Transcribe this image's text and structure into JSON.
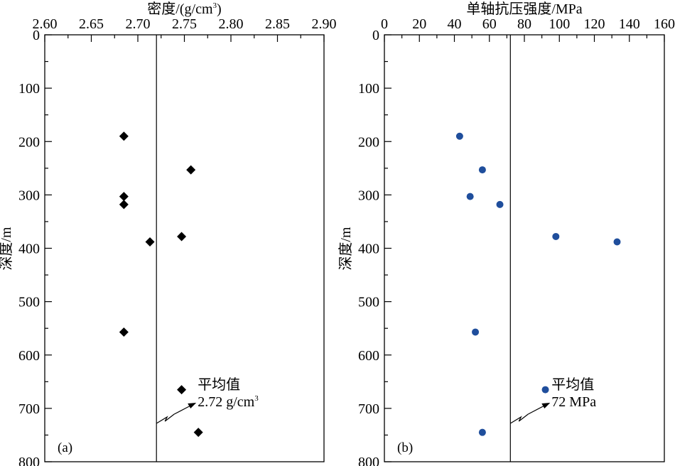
{
  "chart_data": [
    {
      "type": "scatter",
      "panel_label": "(a)",
      "x_title_base": "密度/(g/cm",
      "x_title_sup": "3",
      "x_title_close": ")",
      "y_title": "深度/m",
      "xlim": [
        2.6,
        2.9
      ],
      "ylim": [
        0,
        800
      ],
      "y_inverted": true,
      "x_axis_position": "top",
      "x_ticks": [
        "2.60",
        "2.65",
        "2.70",
        "2.75",
        "2.80",
        "2.85",
        "2.90"
      ],
      "y_ticks": [
        "0",
        "100",
        "200",
        "300",
        "400",
        "500",
        "600",
        "700",
        "800"
      ],
      "marker": "diamond",
      "marker_color": "#000000",
      "points": [
        {
          "x": 2.685,
          "y": 190
        },
        {
          "x": 2.757,
          "y": 253
        },
        {
          "x": 2.685,
          "y": 303
        },
        {
          "x": 2.685,
          "y": 318
        },
        {
          "x": 2.747,
          "y": 378
        },
        {
          "x": 2.713,
          "y": 388
        },
        {
          "x": 2.685,
          "y": 557
        },
        {
          "x": 2.747,
          "y": 665
        },
        {
          "x": 2.765,
          "y": 745
        }
      ],
      "mean": 2.72,
      "mean_label_line1": "平均值",
      "mean_label_line2_base": "2.72 g/cm",
      "mean_label_line2_sup": "3"
    },
    {
      "type": "scatter",
      "panel_label": "(b)",
      "x_title_base": "单轴抗压强度/MPa",
      "x_title_sup": "",
      "x_title_close": "",
      "y_title": "深度/m",
      "xlim": [
        0,
        160
      ],
      "ylim": [
        0,
        800
      ],
      "y_inverted": true,
      "x_axis_position": "top",
      "x_ticks": [
        "0",
        "20",
        "40",
        "60",
        "80",
        "100",
        "120",
        "140",
        "160"
      ],
      "y_ticks": [
        "0",
        "100",
        "200",
        "300",
        "400",
        "500",
        "600",
        "700",
        "800"
      ],
      "marker": "circle",
      "marker_color": "#1f4e9c",
      "points": [
        {
          "x": 43,
          "y": 190
        },
        {
          "x": 56,
          "y": 253
        },
        {
          "x": 49,
          "y": 303
        },
        {
          "x": 66,
          "y": 318
        },
        {
          "x": 98,
          "y": 378
        },
        {
          "x": 133,
          "y": 388
        },
        {
          "x": 52,
          "y": 557
        },
        {
          "x": 92,
          "y": 665
        },
        {
          "x": 56,
          "y": 745
        }
      ],
      "mean": 72,
      "mean_label_line1": "平均值",
      "mean_label_line2_base": "72 MPa",
      "mean_label_line2_sup": ""
    }
  ]
}
